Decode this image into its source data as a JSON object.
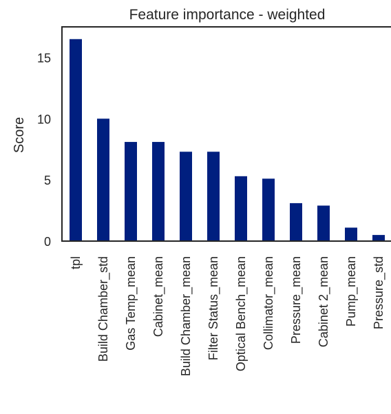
{
  "chart_data": {
    "type": "bar",
    "title": "Feature importance - weighted",
    "xlabel": "",
    "ylabel": "Score",
    "categories": [
      "tpl",
      "Build Chamber_std",
      "Gas Temp_mean",
      "Cabinet_mean",
      "Build Chamber_mean",
      "Filter Status_mean",
      "Optical Bench_mean",
      "Collimator_mean",
      "Pressure_mean",
      "Cabinet 2_mean",
      "Pump_mean",
      "Pressure_std"
    ],
    "values": [
      16.5,
      10.0,
      8.1,
      8.1,
      7.3,
      7.3,
      5.3,
      5.1,
      3.1,
      2.9,
      1.1,
      0.5
    ],
    "ylim": [
      0,
      17.5
    ],
    "yticks": [
      0,
      5,
      10,
      15
    ],
    "grid": false,
    "legend": "none",
    "bar_color": "#001f7f"
  }
}
